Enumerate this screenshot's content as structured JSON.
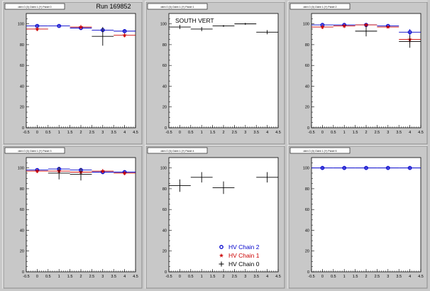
{
  "page_title": "Run 169852",
  "legend": {
    "entries": [
      {
        "label": "HV Chain 2",
        "color": "#0000cc",
        "marker": "circle-open"
      },
      {
        "label": "HV Chain 1",
        "color": "#cc0000",
        "marker": "star"
      },
      {
        "label": "HV Chain 0",
        "color": "#000000",
        "marker": "cross"
      }
    ]
  },
  "colors": {
    "chain2": "#0000cc",
    "chain1": "#cc0000",
    "chain0": "#000000",
    "frame_bg": "#ffffff",
    "canvas_bg": "#c8c8c8"
  },
  "chart_data": [
    {
      "type": "scatter",
      "panel_title": "dem 0 (0) Octnt 1 (Y) Panel 0",
      "annotation": "",
      "xlim": [
        -0.5,
        4.5
      ],
      "ylim": [
        0,
        110
      ],
      "x_ticks": [
        "-0.5",
        "0",
        "0.5",
        "1",
        "1.5",
        "2",
        "2.5",
        "3",
        "3.5",
        "4",
        "4.5"
      ],
      "y_ticks": [
        "0",
        "20",
        "40",
        "60",
        "80",
        "100"
      ],
      "series": [
        {
          "key": "chain2",
          "points": [
            {
              "x": 0,
              "y": 98,
              "err": 1
            },
            {
              "x": 1,
              "y": 98,
              "err": 1
            },
            {
              "x": 2,
              "y": 96,
              "err": 1
            },
            {
              "x": 3,
              "y": 94,
              "err": 1
            },
            {
              "x": 4,
              "y": 93,
              "err": 1
            }
          ]
        },
        {
          "key": "chain1",
          "points": [
            {
              "x": 0,
              "y": 95,
              "err": 2
            },
            {
              "x": 2,
              "y": 97,
              "err": 2
            },
            {
              "x": 4,
              "y": 89,
              "err": 2
            }
          ]
        },
        {
          "key": "chain0",
          "points": [
            {
              "x": 3,
              "y": 88,
              "err": 9
            }
          ]
        }
      ]
    },
    {
      "type": "scatter",
      "panel_title": "dem 0 (0) Octnt 1 (Y) Panel 1",
      "annotation": "SOUTH VERT",
      "xlim": [
        -0.5,
        4.5
      ],
      "ylim": [
        0,
        110
      ],
      "x_ticks": [
        "-0.5",
        "0",
        "0.5",
        "1",
        "1.5",
        "2",
        "2.5",
        "3",
        "3.5",
        "4",
        "4.5"
      ],
      "y_ticks": [
        "0",
        "20",
        "40",
        "60",
        "80",
        "100"
      ],
      "series": [
        {
          "key": "chain0",
          "points": [
            {
              "x": 0,
              "y": 97,
              "err": 2
            },
            {
              "x": 1,
              "y": 95,
              "err": 2
            },
            {
              "x": 2,
              "y": 98,
              "err": 1
            },
            {
              "x": 3,
              "y": 100,
              "err": 1
            },
            {
              "x": 4,
              "y": 92,
              "err": 2
            }
          ]
        }
      ]
    },
    {
      "type": "scatter",
      "panel_title": "dem 0 (0) Octnt 1 (Y) Panel 2",
      "annotation": "",
      "xlim": [
        -0.5,
        4.5
      ],
      "ylim": [
        0,
        110
      ],
      "x_ticks": [
        "-0.5",
        "0",
        "0.5",
        "1",
        "1.5",
        "2",
        "2.5",
        "3",
        "3.5",
        "4",
        "4.5"
      ],
      "y_ticks": [
        "0",
        "20",
        "40",
        "60",
        "80",
        "100"
      ],
      "series": [
        {
          "key": "chain2",
          "points": [
            {
              "x": 0,
              "y": 99,
              "err": 1
            },
            {
              "x": 1,
              "y": 99,
              "err": 1
            },
            {
              "x": 2,
              "y": 99,
              "err": 1
            },
            {
              "x": 3,
              "y": 98,
              "err": 1
            },
            {
              "x": 4,
              "y": 92,
              "err": 3
            }
          ]
        },
        {
          "key": "chain1",
          "points": [
            {
              "x": 0,
              "y": 97,
              "err": 2
            },
            {
              "x": 1,
              "y": 98,
              "err": 2
            },
            {
              "x": 2,
              "y": 99,
              "err": 1
            },
            {
              "x": 3,
              "y": 97,
              "err": 1
            },
            {
              "x": 4,
              "y": 85,
              "err": 4
            }
          ]
        },
        {
          "key": "chain0",
          "points": [
            {
              "x": 2,
              "y": 93,
              "err": 5
            },
            {
              "x": 4,
              "y": 83,
              "err": 6
            }
          ]
        }
      ]
    },
    {
      "type": "scatter",
      "panel_title": "dem 0 (0) Octnt 1 (Y) Panel 3",
      "annotation": "",
      "xlim": [
        -0.5,
        4.5
      ],
      "ylim": [
        0,
        110
      ],
      "x_ticks": [
        "-0.5",
        "0",
        "0.5",
        "1",
        "1.5",
        "2",
        "2.5",
        "3",
        "3.5",
        "4",
        "4.5"
      ],
      "y_ticks": [
        "0",
        "20",
        "40",
        "60",
        "80",
        "100"
      ],
      "series": [
        {
          "key": "chain2",
          "points": [
            {
              "x": 0,
              "y": 98,
              "err": 1
            },
            {
              "x": 1,
              "y": 99,
              "err": 1
            },
            {
              "x": 2,
              "y": 98,
              "err": 1
            },
            {
              "x": 3,
              "y": 96,
              "err": 1
            },
            {
              "x": 4,
              "y": 96,
              "err": 1
            }
          ]
        },
        {
          "key": "chain1",
          "points": [
            {
              "x": 0,
              "y": 97,
              "err": 2
            },
            {
              "x": 1,
              "y": 97,
              "err": 2
            },
            {
              "x": 2,
              "y": 96,
              "err": 2
            },
            {
              "x": 3,
              "y": 97,
              "err": 2
            },
            {
              "x": 4,
              "y": 95,
              "err": 2
            }
          ]
        },
        {
          "key": "chain0",
          "points": [
            {
              "x": 1,
              "y": 95,
              "err": 6
            },
            {
              "x": 2,
              "y": 94,
              "err": 6
            }
          ]
        }
      ]
    },
    {
      "type": "scatter",
      "panel_title": "dem 0 (0) Octnt 1 (Y) Panel 4",
      "annotation": "",
      "xlim": [
        -0.5,
        4.5
      ],
      "ylim": [
        0,
        110
      ],
      "x_ticks": [
        "-0.5",
        "0",
        "0.5",
        "1",
        "1.5",
        "2",
        "2.5",
        "3",
        "3.5",
        "4",
        "4.5"
      ],
      "y_ticks": [
        "0",
        "20",
        "40",
        "60",
        "80",
        "100"
      ],
      "series": [
        {
          "key": "chain0",
          "points": [
            {
              "x": 0,
              "y": 83,
              "err": 6
            },
            {
              "x": 1,
              "y": 91,
              "err": 5
            },
            {
              "x": 2,
              "y": 81,
              "err": 6
            },
            {
              "x": 4,
              "y": 91,
              "err": 5
            }
          ]
        }
      ]
    },
    {
      "type": "scatter",
      "panel_title": "dem 0 (0) Octnt 1 (Y) Panel 5",
      "annotation": "",
      "xlim": [
        -0.5,
        4.5
      ],
      "ylim": [
        0,
        110
      ],
      "x_ticks": [
        "-0.5",
        "0",
        "0.5",
        "1",
        "1.5",
        "2",
        "2.5",
        "3",
        "3.5",
        "4",
        "4.5"
      ],
      "y_ticks": [
        "0",
        "20",
        "40",
        "60",
        "80",
        "100"
      ],
      "series": [
        {
          "key": "chain2",
          "points": [
            {
              "x": 0,
              "y": 100,
              "err": 1
            },
            {
              "x": 1,
              "y": 100,
              "err": 1
            },
            {
              "x": 2,
              "y": 100,
              "err": 1
            },
            {
              "x": 3,
              "y": 100,
              "err": 1
            },
            {
              "x": 4,
              "y": 100,
              "err": 1
            }
          ]
        }
      ]
    }
  ]
}
